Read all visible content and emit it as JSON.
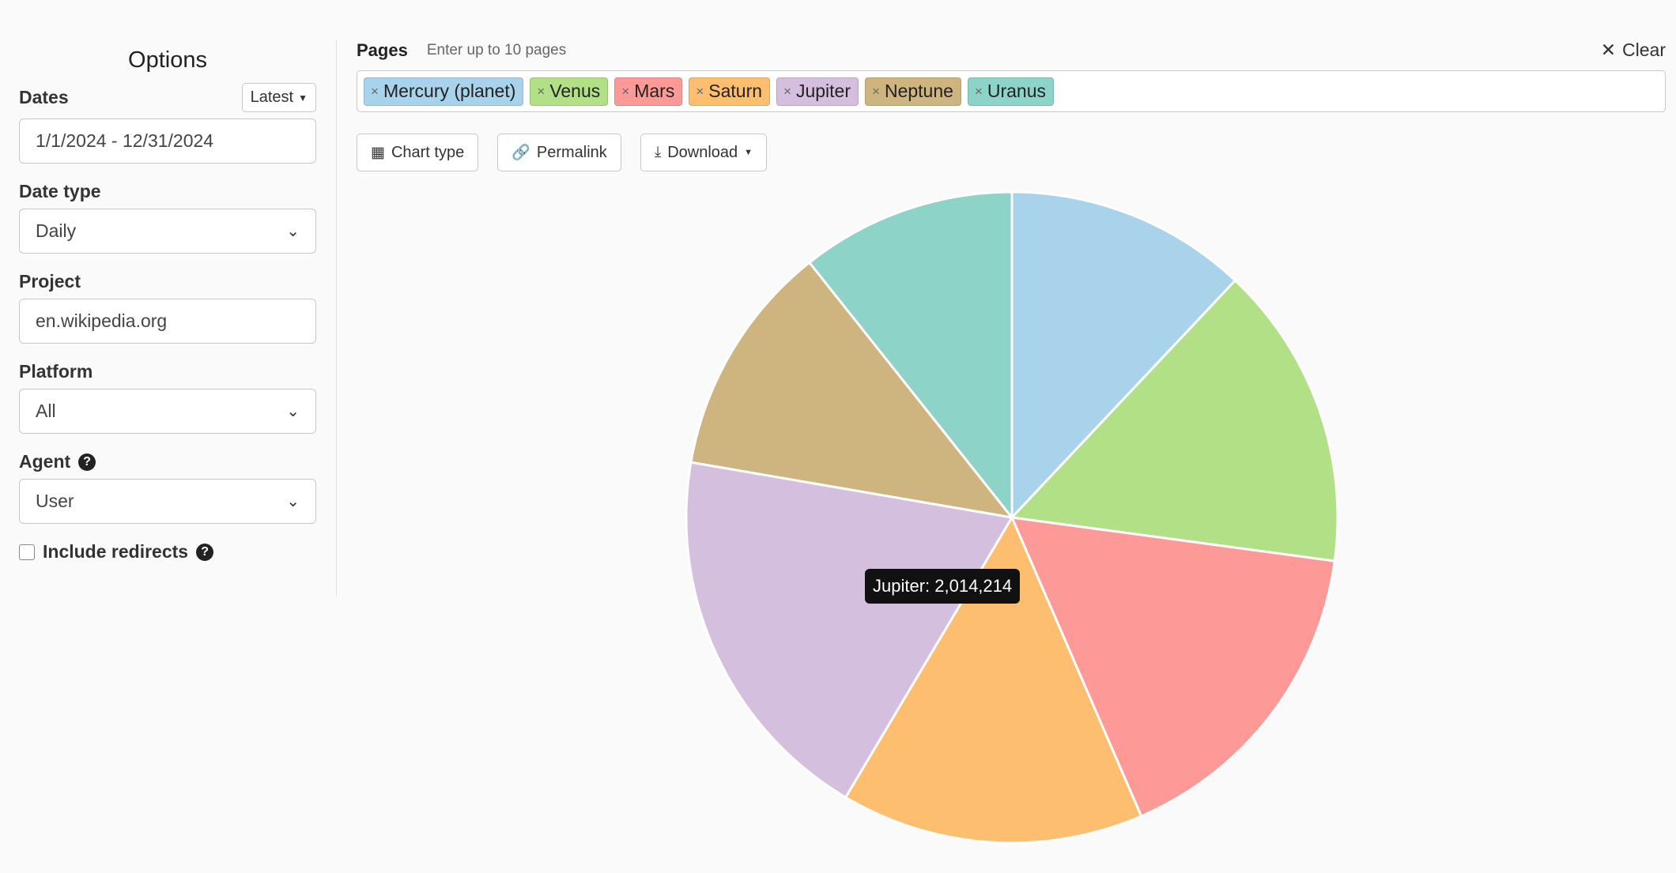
{
  "options": {
    "title": "Options",
    "dates": {
      "label": "Dates",
      "latest_label": "Latest",
      "value": "1/1/2024 - 12/31/2024"
    },
    "date_type": {
      "label": "Date type",
      "value": "Daily"
    },
    "project": {
      "label": "Project",
      "value": "en.wikipedia.org"
    },
    "platform": {
      "label": "Platform",
      "value": "All"
    },
    "agent": {
      "label": "Agent",
      "value": "User"
    },
    "include_redirects": {
      "label": "Include redirects",
      "checked": false
    }
  },
  "pages": {
    "label": "Pages",
    "hint": "Enter up to 10 pages",
    "clear_label": "Clear",
    "tags": [
      {
        "label": "Mercury (planet)",
        "color": "#a9d3ea"
      },
      {
        "label": "Venus",
        "color": "#b1e087"
      },
      {
        "label": "Mars",
        "color": "#fd9a98"
      },
      {
        "label": "Saturn",
        "color": "#fdbf6f"
      },
      {
        "label": "Jupiter",
        "color": "#d5bfde"
      },
      {
        "label": "Neptune",
        "color": "#ceb57f"
      },
      {
        "label": "Uranus",
        "color": "#8dd3c7"
      }
    ]
  },
  "toolbar": {
    "chart_type_label": "Chart type",
    "permalink_label": "Permalink",
    "download_label": "Download"
  },
  "tooltip": {
    "text": "Jupiter: 2,014,214"
  },
  "chart_data": {
    "type": "pie",
    "categories": [
      "Mercury (planet)",
      "Venus",
      "Mars",
      "Saturn",
      "Jupiter",
      "Neptune",
      "Uranus"
    ],
    "values": [
      1262000,
      1587000,
      1718000,
      1578000,
      2014214,
      1219000,
      1121000
    ],
    "colors": [
      "#a9d3ea",
      "#b1e087",
      "#fd9a98",
      "#fdbf6f",
      "#d5bfde",
      "#ceb57f",
      "#8dd3c7"
    ],
    "start_angle": "top",
    "direction": "clockwise"
  }
}
